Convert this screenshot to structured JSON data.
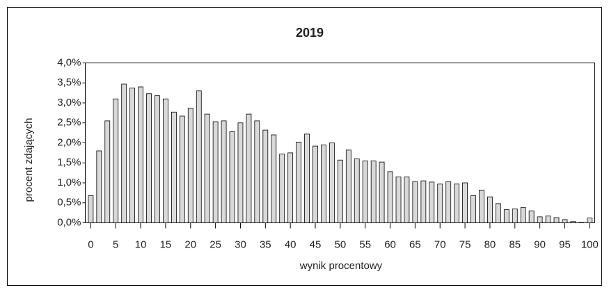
{
  "chart_data": {
    "type": "bar",
    "title": "2019",
    "x_label": "wynik procentowy",
    "y_label": "procent zdających",
    "x": [
      0,
      1.67,
      3.33,
      5,
      6.67,
      8.33,
      10,
      11.67,
      13.33,
      15,
      16.67,
      18.33,
      20,
      21.67,
      23.33,
      25,
      26.67,
      28.33,
      30,
      31.67,
      33.33,
      35,
      36.67,
      38.33,
      40,
      41.67,
      43.33,
      45,
      46.67,
      48.33,
      50,
      51.67,
      53.33,
      55,
      56.67,
      58.33,
      60,
      61.67,
      63.33,
      65,
      66.67,
      68.33,
      70,
      71.67,
      73.33,
      75,
      76.67,
      78.33,
      80,
      81.67,
      83.33,
      85,
      86.67,
      88.33,
      90,
      91.67,
      93.33,
      95,
      96.67,
      98.33,
      100
    ],
    "values": [
      0.68,
      1.8,
      2.55,
      3.1,
      3.47,
      3.37,
      3.4,
      3.23,
      3.18,
      3.1,
      2.77,
      2.67,
      2.87,
      3.3,
      2.72,
      2.53,
      2.55,
      2.28,
      2.5,
      2.72,
      2.55,
      2.32,
      2.2,
      1.72,
      1.75,
      2.02,
      2.22,
      1.92,
      1.95,
      2.0,
      1.57,
      1.82,
      1.6,
      1.55,
      1.55,
      1.52,
      1.28,
      1.15,
      1.15,
      1.03,
      1.05,
      1.02,
      0.97,
      1.03,
      0.97,
      1.0,
      0.68,
      0.82,
      0.65,
      0.48,
      0.33,
      0.35,
      0.38,
      0.3,
      0.15,
      0.17,
      0.13,
      0.08,
      0.03,
      0.01,
      0.12
    ],
    "color": "#d9d9d9",
    "xlim": [
      -1.1,
      101
    ],
    "xticks": [
      0,
      5,
      10,
      15,
      20,
      25,
      30,
      35,
      40,
      45,
      50,
      55,
      60,
      65,
      70,
      75,
      80,
      85,
      90,
      95,
      100
    ],
    "ylim": [
      0,
      4
    ],
    "yticks": [
      {
        "value": 0,
        "label": "0,0%"
      },
      {
        "value": 0.5,
        "label": "0,5%"
      },
      {
        "value": 1,
        "label": "1,0%"
      },
      {
        "value": 1.5,
        "label": "1,5%"
      },
      {
        "value": 2,
        "label": "2,0%"
      },
      {
        "value": 2.5,
        "label": "2,5%"
      },
      {
        "value": 3,
        "label": "3,0%"
      },
      {
        "value": 3.5,
        "label": "3,5%"
      },
      {
        "value": 4,
        "label": "4,0%"
      }
    ]
  }
}
